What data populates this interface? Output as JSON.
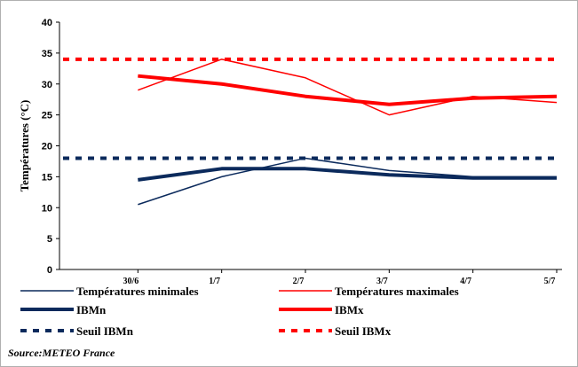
{
  "chart_data": {
    "type": "line",
    "categories": [
      "30/6",
      "1/7",
      "2/7",
      "3/7",
      "4/7",
      "5/7"
    ],
    "ylabel": "Températures  (°C)",
    "ylim": [
      0,
      40
    ],
    "yticks": [
      "0",
      "5",
      "10",
      "15",
      "20",
      "25",
      "30",
      "35",
      "40"
    ],
    "grid": false,
    "series": [
      {
        "name": "Températures minimales",
        "values": [
          10.5,
          15,
          18,
          16,
          15,
          15
        ],
        "color": "#0b2a5c",
        "style": "thin"
      },
      {
        "name": "Températures maximales",
        "values": [
          29,
          34,
          31,
          25,
          28,
          27
        ],
        "color": "#ff0000",
        "style": "thin"
      },
      {
        "name": "IBMn",
        "values": [
          14.5,
          16.3,
          16.3,
          15.3,
          14.8,
          14.8
        ],
        "color": "#0b2a5c",
        "style": "thick"
      },
      {
        "name": "IBMx",
        "values": [
          31.3,
          30,
          28,
          26.7,
          27.7,
          28
        ],
        "color": "#ff0000",
        "style": "thick"
      },
      {
        "name": "Seuil IBMn",
        "values": [
          18,
          18,
          18,
          18,
          18,
          18
        ],
        "color": "#0b2a5c",
        "style": "dashed"
      },
      {
        "name": "Seuil IBMx",
        "values": [
          34,
          34,
          34,
          34,
          34,
          34
        ],
        "color": "#ff0000",
        "style": "dashed"
      }
    ],
    "legend_position": "bottom"
  },
  "source": "Source:METEO France"
}
